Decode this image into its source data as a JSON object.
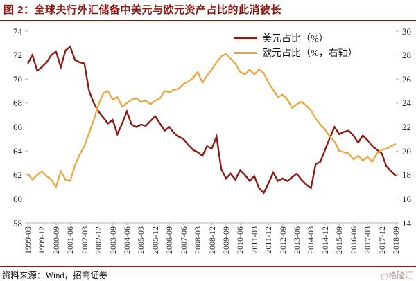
{
  "title": "图 2：全球央行外汇储备中美元与欧元资产占比的此消彼长",
  "source": "资料来源：Wind，招商证券",
  "watermark": "@格隆汇",
  "colors": {
    "usd": "#8e1a12",
    "eur": "#eda63d",
    "accent_rule": "#8e1610",
    "axis": "#b5b5b5"
  },
  "chart_data": {
    "type": "line",
    "title": "全球央行外汇储备中美元与欧元资产占比的此消彼长",
    "categories": [
      "1999-03",
      "1999-06",
      "1999-09",
      "1999-12",
      "2000-03",
      "2000-06",
      "2000-09",
      "2000-12",
      "2001-03",
      "2001-06",
      "2001-09",
      "2001-12",
      "2002-03",
      "2002-06",
      "2002-09",
      "2002-12",
      "2003-03",
      "2003-06",
      "2003-09",
      "2003-12",
      "2004-03",
      "2004-06",
      "2004-09",
      "2004-12",
      "2005-03",
      "2005-06",
      "2005-09",
      "2005-12",
      "2006-03",
      "2006-06",
      "2006-09",
      "2006-12",
      "2007-03",
      "2007-06",
      "2007-09",
      "2007-12",
      "2008-03",
      "2008-06",
      "2008-09",
      "2008-12",
      "2009-03",
      "2009-06",
      "2009-09",
      "2009-12",
      "2010-03",
      "2010-06",
      "2010-09",
      "2010-12",
      "2011-03",
      "2011-06",
      "2011-09",
      "2011-12",
      "2012-03",
      "2012-06",
      "2012-09",
      "2012-12",
      "2013-03",
      "2013-06",
      "2013-09",
      "2013-12",
      "2014-03",
      "2014-06",
      "2014-09",
      "2014-12",
      "2015-03",
      "2015-06",
      "2015-09",
      "2015-12",
      "2016-03",
      "2016-06",
      "2016-09",
      "2016-12",
      "2017-03",
      "2017-06",
      "2017-09",
      "2017-12",
      "2018-03",
      "2018-06",
      "2018-09"
    ],
    "x_tick_every": 3,
    "series": [
      {
        "name": "美元占比（%）",
        "axis": "left",
        "values": [
          71.3,
          72.0,
          70.7,
          71.0,
          71.4,
          72.0,
          72.3,
          71.0,
          72.4,
          72.7,
          71.6,
          71.4,
          71.3,
          69.0,
          68.0,
          67.3,
          66.8,
          66.3,
          66.6,
          65.4,
          66.3,
          67.3,
          66.2,
          66.0,
          66.2,
          66.1,
          66.5,
          66.9,
          66.3,
          65.7,
          66.0,
          65.5,
          65.2,
          65.0,
          64.5,
          64.1,
          63.9,
          63.6,
          64.4,
          64.2,
          65.2,
          62.5,
          61.7,
          62.1,
          61.6,
          62.4,
          62.0,
          61.5,
          61.9,
          60.9,
          60.5,
          61.3,
          62.2,
          61.5,
          61.7,
          61.5,
          61.8,
          62.1,
          61.6,
          61.2,
          60.9,
          62.9,
          63.1,
          64.1,
          65.1,
          66.0,
          65.4,
          65.6,
          65.7,
          65.3,
          64.7,
          65.3,
          64.9,
          64.4,
          64.1,
          63.8,
          62.7,
          62.3,
          61.9
        ]
      },
      {
        "name": "欧元占比（%，右轴）",
        "axis": "right",
        "values": [
          18.1,
          17.6,
          18.0,
          18.3,
          17.9,
          17.6,
          17.0,
          18.3,
          17.6,
          17.5,
          18.8,
          19.7,
          20.4,
          21.5,
          22.6,
          23.9,
          24.8,
          25.0,
          24.3,
          24.5,
          23.7,
          24.0,
          24.3,
          24.4,
          24.1,
          24.2,
          23.9,
          24.2,
          24.4,
          25.0,
          24.9,
          25.1,
          25.2,
          25.6,
          25.8,
          26.1,
          26.6,
          25.7,
          26.3,
          26.8,
          27.4,
          27.9,
          28.1,
          27.7,
          27.3,
          26.6,
          26.4,
          26.8,
          26.4,
          26.8,
          26.5,
          25.7,
          25.1,
          24.5,
          24.7,
          24.3,
          23.6,
          23.9,
          24.1,
          23.8,
          23.4,
          22.7,
          22.2,
          21.8,
          21.2,
          20.8,
          20.0,
          19.9,
          19.8,
          19.3,
          19.6,
          19.2,
          19.5,
          19.1,
          19.8,
          20.1,
          20.2,
          20.4,
          20.6
        ]
      }
    ],
    "left_axis": {
      "min": 58,
      "max": 74,
      "step": 2
    },
    "right_axis": {
      "min": 14,
      "max": 30,
      "step": 2
    },
    "grid": false,
    "legend_position": "top-center"
  }
}
